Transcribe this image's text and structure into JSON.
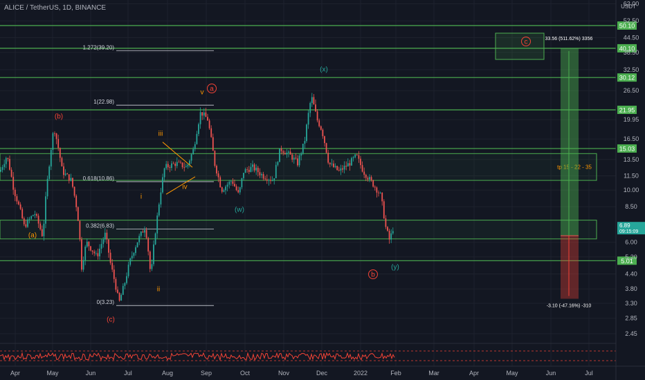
{
  "title": "ALICE / TetherUS, 1D, BINANCE",
  "currency_label": "USDT",
  "colors": {
    "bg": "#131722",
    "up": "#26a69a",
    "down": "#ef5350",
    "level": "#4caf50",
    "wave_red": "#f44336",
    "wave_teal": "#26a69a",
    "wave_orange": "#ff9800",
    "fib": "#d1d4dc",
    "tp_green": "#4caf50",
    "sl_red": "#f44336"
  },
  "chart_data": {
    "type": "candlestick",
    "y_scale": "log",
    "y_ticks": [
      "62.00",
      "52.50",
      "44.50",
      "38.50",
      "32.50",
      "26.50",
      "19.95",
      "16.50",
      "13.50",
      "11.50",
      "10.00",
      "8.50",
      "6.00",
      "5.20",
      "4.40",
      "3.80",
      "3.30",
      "2.85",
      "2.45"
    ],
    "x_ticks": [
      "Apr",
      "May",
      "Jun",
      "Jul",
      "Aug",
      "Sep",
      "Oct",
      "Nov",
      "Dec",
      "2022",
      "Feb",
      "Mar",
      "Apr",
      "May",
      "Jun",
      "Jul"
    ],
    "levels": [
      {
        "value": 50.1,
        "label": "50.10"
      },
      {
        "value": 40.1,
        "label": "40.10"
      },
      {
        "value": 30.12,
        "label": "30.12"
      },
      {
        "value": 21.95,
        "label": "21.95"
      },
      {
        "value": 15.03,
        "label": "15.03"
      },
      {
        "value": 5.01,
        "label": "5.01"
      }
    ],
    "current_price": {
      "value": 6.89,
      "label": "6.89",
      "countdown": "09:15:09"
    },
    "fib_levels": [
      {
        "label": "1.272(39.20)",
        "value": 39.2
      },
      {
        "label": "1(22.98)",
        "value": 22.98
      },
      {
        "label": "0.618(10.86)",
        "value": 10.86
      },
      {
        "label": "0.382(6.83)",
        "value": 6.83
      },
      {
        "label": "0(3.23)",
        "value": 3.23
      }
    ],
    "wave_labels": [
      {
        "text": "(b)",
        "color": "red"
      },
      {
        "text": "(a)",
        "color": "orange"
      },
      {
        "text": "(c)",
        "color": "red"
      },
      {
        "text": "i",
        "color": "orange"
      },
      {
        "text": "ii",
        "color": "orange"
      },
      {
        "text": "iii",
        "color": "orange"
      },
      {
        "text": "iv",
        "color": "orange"
      },
      {
        "text": "v",
        "color": "orange"
      },
      {
        "text": "a",
        "color": "red",
        "circled": true
      },
      {
        "text": "(w)",
        "color": "teal"
      },
      {
        "text": "(x)",
        "color": "teal"
      },
      {
        "text": "(y)",
        "color": "teal"
      },
      {
        "text": "b",
        "color": "red",
        "circled": true
      },
      {
        "text": "c",
        "color": "red",
        "circled": true
      }
    ],
    "zones": [
      {
        "label": "tp 15 - 22 - 35",
        "low": 11.0,
        "high": 14.3
      },
      {
        "label": "",
        "low": 6.2,
        "high": 7.45
      }
    ],
    "position": {
      "target_label": "33.56 (511.62%) 3356",
      "stop_label": "-3.10 (-47.16%) -310"
    }
  }
}
